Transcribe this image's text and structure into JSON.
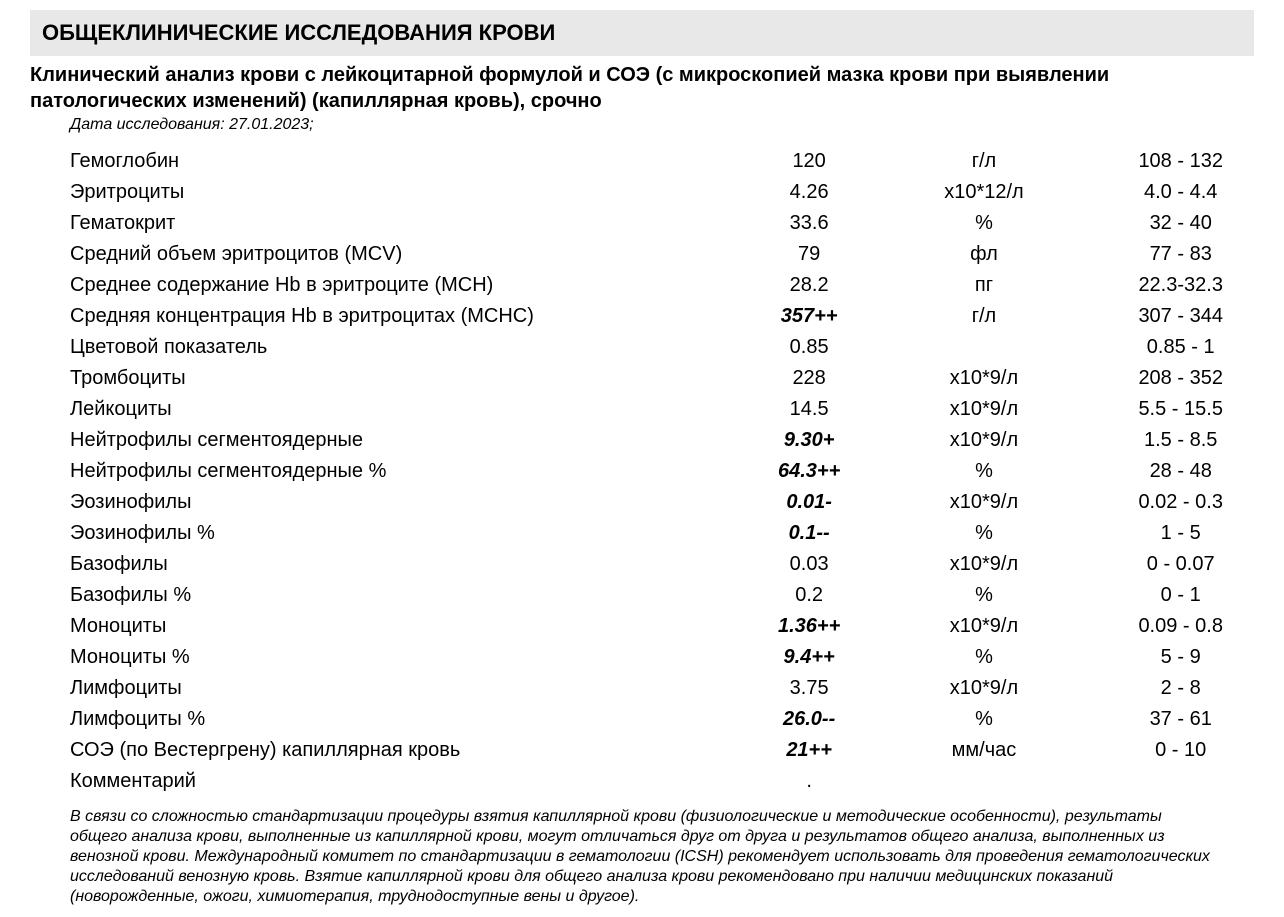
{
  "header": {
    "main_title": "ОБЩЕКЛИНИЧЕСКИЕ ИССЛЕДОВАНИЯ КРОВИ",
    "subtitle": "Клинический анализ крови с лейкоцитарной формулой и СОЭ (с микроскопией мазка крови при выявлении патологических изменений) (капиллярная кровь), срочно",
    "date_label": "Дата исследования: 27.01.2023;"
  },
  "styling": {
    "header_bg": "#e8e8e8",
    "body_bg": "#ffffff",
    "text_color": "#000000",
    "title_fontsize": 22,
    "subtitle_fontsize": 20,
    "row_fontsize": 20,
    "note_fontsize": 16,
    "col_widths": {
      "name": 600,
      "value": 160,
      "unit": 160,
      "range": 200
    }
  },
  "rows": [
    {
      "name": "Гемоглобин",
      "value": "120",
      "unit": "г/л",
      "range": "108 - 132",
      "abnormal": false
    },
    {
      "name": "Эритроциты",
      "value": "4.26",
      "unit": "x10*12/л",
      "range": "4.0 - 4.4",
      "abnormal": false
    },
    {
      "name": "Гематокрит",
      "value": "33.6",
      "unit": "%",
      "range": "32 - 40",
      "abnormal": false
    },
    {
      "name": "Средний объем эритроцитов (MCV)",
      "value": "79",
      "unit": "фл",
      "range": "77 - 83",
      "abnormal": false
    },
    {
      "name": "Среднее содержание Hb в эритроците (MCH)",
      "value": "28.2",
      "unit": "пг",
      "range": "22.3-32.3",
      "abnormal": false
    },
    {
      "name": "Средняя концентрация Hb в эритроцитах (MCHC)",
      "value": "357++",
      "unit": "г/л",
      "range": "307 - 344",
      "abnormal": true
    },
    {
      "name": "Цветовой показатель",
      "value": "0.85",
      "unit": "",
      "range": "0.85 - 1",
      "abnormal": false
    },
    {
      "name": "Тромбоциты",
      "value": "228",
      "unit": "x10*9/л",
      "range": "208 - 352",
      "abnormal": false
    },
    {
      "name": "Лейкоциты",
      "value": "14.5",
      "unit": "x10*9/л",
      "range": "5.5 - 15.5",
      "abnormal": false
    },
    {
      "name": "Нейтрофилы сегментоядерные",
      "value": "9.30+",
      "unit": "x10*9/л",
      "range": "1.5 - 8.5",
      "abnormal": true
    },
    {
      "name": "Нейтрофилы сегментоядерные %",
      "value": "64.3++",
      "unit": "%",
      "range": "28 - 48",
      "abnormal": true
    },
    {
      "name": "Эозинофилы",
      "value": "0.01-",
      "unit": "x10*9/л",
      "range": "0.02 - 0.3",
      "abnormal": true
    },
    {
      "name": "Эозинофилы %",
      "value": "0.1--",
      "unit": "%",
      "range": "1 - 5",
      "abnormal": true
    },
    {
      "name": "Базофилы",
      "value": "0.03",
      "unit": "x10*9/л",
      "range": "0 - 0.07",
      "abnormal": false
    },
    {
      "name": "Базофилы %",
      "value": "0.2",
      "unit": "%",
      "range": "0 - 1",
      "abnormal": false
    },
    {
      "name": "Моноциты",
      "value": "1.36++",
      "unit": "x10*9/л",
      "range": "0.09 - 0.8",
      "abnormal": true
    },
    {
      "name": "Моноциты %",
      "value": "9.4++",
      "unit": "%",
      "range": "5 - 9",
      "abnormal": true
    },
    {
      "name": "Лимфоциты",
      "value": "3.75",
      "unit": "x10*9/л",
      "range": "2 - 8",
      "abnormal": false
    },
    {
      "name": "Лимфоциты %",
      "value": "26.0--",
      "unit": "%",
      "range": "37 - 61",
      "abnormal": true
    },
    {
      "name": "СОЭ (по Вестергрену) капиллярная кровь",
      "value": "21++",
      "unit": "мм/час",
      "range": "0 - 10",
      "abnormal": true
    },
    {
      "name": "Комментарий",
      "value": ".",
      "unit": "",
      "range": "",
      "abnormal": false
    }
  ],
  "footer_note": "В связи со сложностью стандартизации процедуры взятия капиллярной крови (физиологические и методические особенности), результаты общего анализа крови, выполненные из капиллярной крови, могут отличаться друг от друга и результатов общего анализа, выполненных из венозной крови. Международный комитет по стандартизации в гематологии (ICSH) рекомендует использовать для проведения гематологических исследований венозную кровь. Взятие капиллярной крови для общего анализа крови рекомендовано при наличии медицинских показаний (новорожденные, ожоги, химиотерапия, труднодоступные вены и другое)."
}
